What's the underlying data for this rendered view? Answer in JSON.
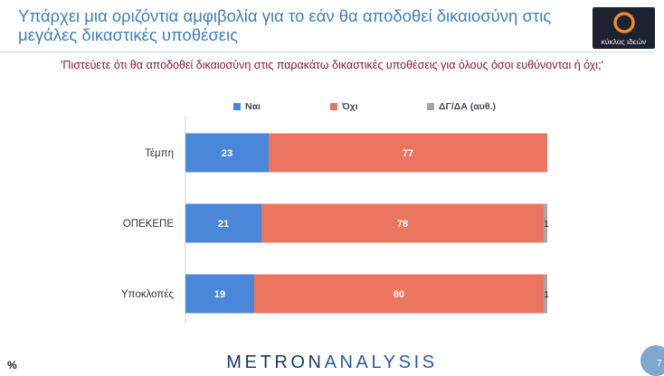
{
  "header": {
    "title": "Υπάρχει μια οριζόντια αμφιβολία για το εάν θα αποδοθεί δικαιοσύνη στις μεγάλες δικαστικές υποθέσεις",
    "logo_text": "κύκλος ιδεών"
  },
  "question": "'Πιστεύετε ότι θα αποδοθεί δικαιοσύνη στις παρακάτω δικαστικές υποθέσεις για όλους όσοι ευθύνονται ή όχι;'",
  "footer": {
    "brand_part1": "METRON",
    "brand_part2": "ANALYSIS",
    "unit": "%",
    "page_number": "7"
  },
  "colors": {
    "yes": "#4a87d8",
    "no": "#ec7560",
    "dk": "#a6a6a6",
    "title": "#3d7fbf",
    "question": "#8b1a2a"
  },
  "chart_data": {
    "type": "bar",
    "orientation": "horizontal",
    "stacked": true,
    "categories": [
      "Τέμπη",
      "ΟΠΕΚΕΠΕ",
      "Υποκλοπές"
    ],
    "series": [
      {
        "name": "Ναι",
        "values": [
          23,
          21,
          19
        ],
        "color": "#4a87d8"
      },
      {
        "name": "Όχι",
        "values": [
          77,
          78,
          80
        ],
        "color": "#ec7560"
      },
      {
        "name": "ΔΓ/ΔΑ (αυθ.)",
        "values": [
          0,
          1,
          1
        ],
        "color": "#a6a6a6"
      }
    ],
    "value_labels": [
      [
        "23",
        "77",
        ""
      ],
      [
        "21",
        "78",
        "1"
      ],
      [
        "19",
        "80",
        "1"
      ]
    ],
    "xlim": [
      0,
      100
    ],
    "legend_position": "top-center",
    "grid": false
  }
}
